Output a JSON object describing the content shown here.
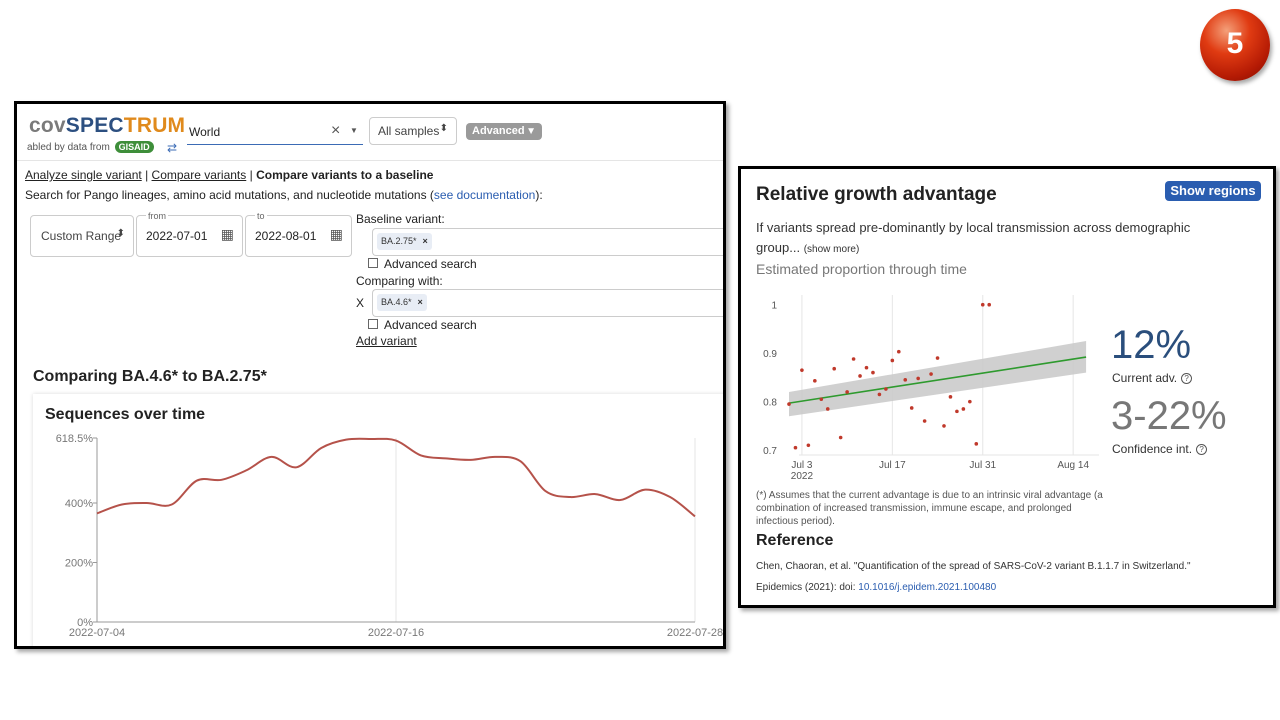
{
  "slide": {
    "number": "5"
  },
  "covspectrum": {
    "logo": {
      "part1": "cov",
      "part2": "SPEC",
      "part3": "TRUM"
    },
    "enabled_by": "abled by data from",
    "gisaid": "GISAID",
    "search": {
      "value": "World",
      "clear_icon": "close-icon",
      "caret_icon": "chevron-down-icon"
    },
    "samples_select": {
      "value": "All samples"
    },
    "advanced_button": "Advanced",
    "nav": {
      "single": "Analyze single variant",
      "compare": "Compare variants",
      "baseline": "Compare variants to a baseline",
      "sep": "|"
    },
    "help": {
      "prefix": "Search for Pango lineages, amino acid mutations, and nucleotide mutations (",
      "link": "see documentation",
      "suffix": "):"
    },
    "date_range": {
      "value": "Custom Range"
    },
    "from": {
      "label": "from",
      "value": "2022-07-01"
    },
    "to": {
      "label": "to",
      "value": "2022-08-01"
    },
    "baseline": {
      "label": "Baseline variant:",
      "chip": "BA.2.75*",
      "chip_remove": "×",
      "advanced_search": "Advanced search"
    },
    "comparing": {
      "label": "Comparing with:",
      "x": "X",
      "chip": "BA.4.6*",
      "chip_remove": "×",
      "advanced_search": "Advanced search"
    },
    "add_variant": "Add variant",
    "comparison_title": "Comparing BA.4.6* to BA.2.75*",
    "sequences_title": "Sequences over time"
  },
  "growth": {
    "title": "Relative growth advantage",
    "show_regions": "Show regions",
    "description": "If variants spread pre-dominantly by local transmission across demographic group...",
    "show_more": "(show more)",
    "subtitle": "Estimated proportion through time",
    "current_adv": "12%",
    "current_adv_label": "Current adv.",
    "confidence": "3-22%",
    "confidence_label": "Confidence int.",
    "help_icon": "?",
    "note": "(*) Assumes that the current advantage is due to an intrinsic viral advantage (a combination of increased transmission, immune escape, and prolonged infectious period).",
    "reference_title": "Reference",
    "reference_text": "Chen, Chaoran, et al. \"Quantification of the spread of SARS-CoV-2 variant B.1.1.7 in Switzerland.\"",
    "reference_journal": "Epidemics (2021): doi:",
    "reference_doi": "10.1016/j.epidem.2021.100480"
  },
  "chart_data": [
    {
      "type": "line",
      "title": "Sequences over time",
      "color": "#b5524a",
      "x_ticks": [
        "2022-07-04",
        "2022-07-16",
        "2022-07-28"
      ],
      "y_ticks": [
        "618.5%",
        "400%",
        "200%",
        "0%"
      ],
      "ylim": [
        0,
        618.5
      ],
      "x": [
        "2022-07-04",
        "2022-07-05",
        "2022-07-06",
        "2022-07-07",
        "2022-07-08",
        "2022-07-09",
        "2022-07-10",
        "2022-07-11",
        "2022-07-12",
        "2022-07-13",
        "2022-07-14",
        "2022-07-15",
        "2022-07-16",
        "2022-07-17",
        "2022-07-18",
        "2022-07-19",
        "2022-07-20",
        "2022-07-21",
        "2022-07-22",
        "2022-07-23",
        "2022-07-24",
        "2022-07-25",
        "2022-07-26",
        "2022-07-27",
        "2022-07-28"
      ],
      "values": [
        365,
        395,
        400,
        395,
        475,
        478,
        510,
        555,
        520,
        585,
        613,
        615,
        610,
        560,
        550,
        545,
        555,
        540,
        440,
        420,
        430,
        410,
        445,
        420,
        355
      ],
      "grid": "vertical"
    },
    {
      "type": "scatter",
      "title": "Estimated proportion through time",
      "x_ticks": [
        "Jul 3\n2022",
        "Jul 17",
        "Jul 31",
        "Aug 14"
      ],
      "x_tick_days": [
        3,
        17,
        31,
        45
      ],
      "y_ticks": [
        "1",
        "0.9",
        "0.8",
        "0.7"
      ],
      "y_tick_values": [
        1.0,
        0.9,
        0.8,
        0.7
      ],
      "xlim": [
        1,
        49
      ],
      "ylim": [
        0.69,
        1.02
      ],
      "points": [
        [
          1,
          0.795
        ],
        [
          2,
          0.705
        ],
        [
          3,
          0.865
        ],
        [
          4,
          0.71
        ],
        [
          5,
          0.843
        ],
        [
          6,
          0.805
        ],
        [
          7,
          0.785
        ],
        [
          8,
          0.868
        ],
        [
          9,
          0.726
        ],
        [
          10,
          0.82
        ],
        [
          11,
          0.888
        ],
        [
          12,
          0.853
        ],
        [
          13,
          0.87
        ],
        [
          14,
          0.86
        ],
        [
          15,
          0.815
        ],
        [
          16,
          0.826
        ],
        [
          17,
          0.885
        ],
        [
          18,
          0.903
        ],
        [
          19,
          0.845
        ],
        [
          20,
          0.787
        ],
        [
          21,
          0.848
        ],
        [
          22,
          0.76
        ],
        [
          23,
          0.857
        ],
        [
          24,
          0.89
        ],
        [
          25,
          0.75
        ],
        [
          26,
          0.81
        ],
        [
          27,
          0.78
        ],
        [
          28,
          0.785
        ],
        [
          29,
          0.8
        ],
        [
          30,
          0.713
        ],
        [
          31,
          1.0
        ],
        [
          32,
          1.0
        ]
      ],
      "fit": {
        "start": [
          1,
          0.797
        ],
        "end": [
          47,
          0.892
        ],
        "color": "#2e9a2e"
      },
      "band": {
        "start_low": 0.77,
        "start_high": 0.82,
        "end_low": 0.86,
        "end_high": 0.925,
        "color": "#c8c8c8"
      },
      "point_color": "#c0392b",
      "grid": "vertical"
    }
  ]
}
